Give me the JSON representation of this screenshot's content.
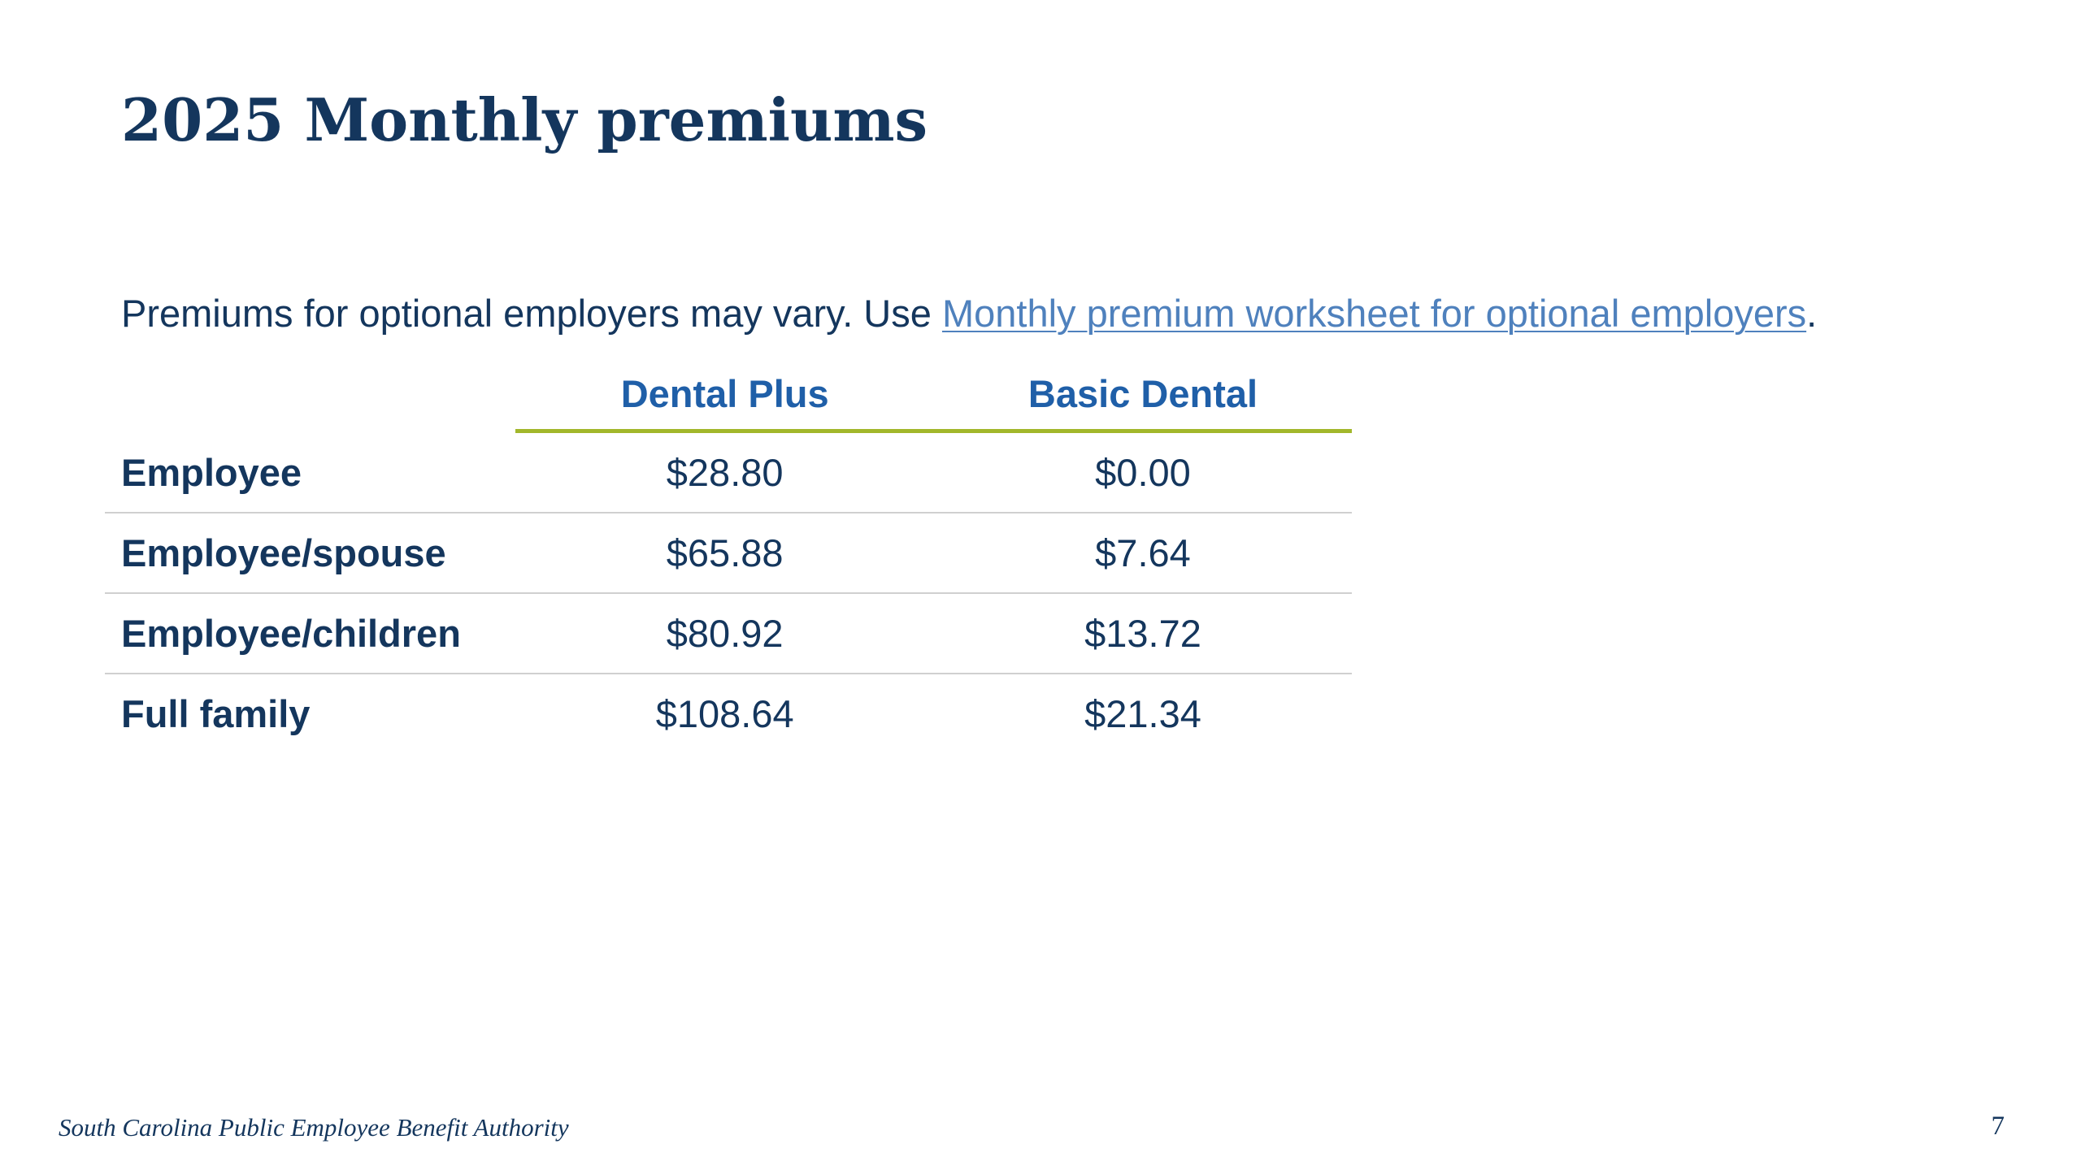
{
  "title": "2025 Monthly premiums",
  "intro": {
    "text": "Premiums for optional employers may vary. Use ",
    "link_text": "Monthly premium worksheet for optional employers",
    "suffix": "."
  },
  "table": {
    "columns": [
      "Dental Plus",
      "Basic Dental"
    ],
    "rows": [
      {
        "label": "Employee",
        "values": [
          "$28.80",
          "$0.00"
        ]
      },
      {
        "label": "Employee/spouse",
        "values": [
          "$65.88",
          "$7.64"
        ]
      },
      {
        "label": "Employee/children",
        "values": [
          "$80.92",
          "$13.72"
        ]
      },
      {
        "label": "Full family",
        "values": [
          "$108.64",
          "$21.34"
        ]
      }
    ]
  },
  "footer": {
    "organization": "South Carolina Public Employee Benefit Authority",
    "page_number": "7"
  },
  "colors": {
    "title": "#14365d",
    "header_text": "#1f5fa8",
    "link": "#4f81bd",
    "header_rule": "#a2b72b",
    "row_rule": "#d0d0d0"
  }
}
